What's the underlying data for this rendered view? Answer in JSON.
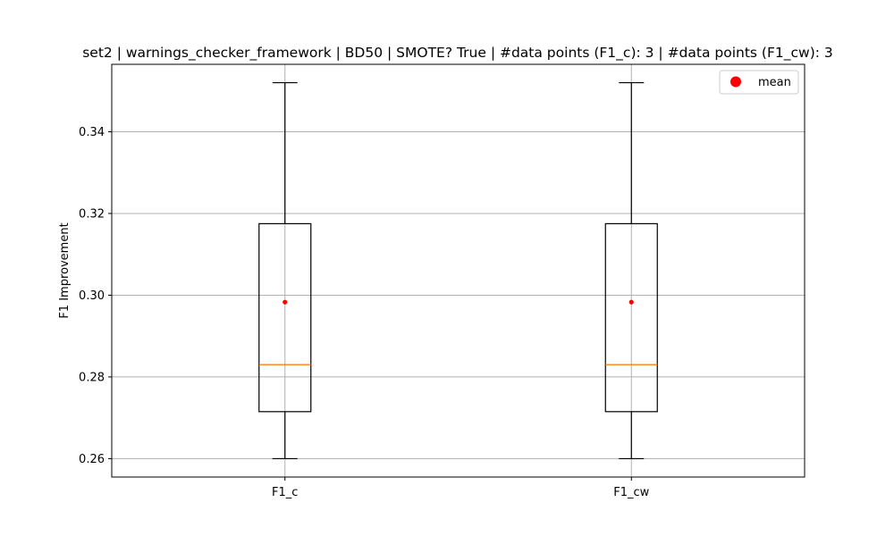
{
  "chart_data": {
    "type": "box",
    "title": "set2 | warnings_checker_framework | BD50 | SMOTE? True | #data points (F1_c): 3 | #data points (F1_cw): 3",
    "xlabel": "",
    "ylabel": "F1 Improvement",
    "ylim": [
      0.2555,
      0.3565
    ],
    "yticks": [
      0.26,
      0.28,
      0.3,
      0.32,
      0.34
    ],
    "ytick_labels": [
      "0.26",
      "0.28",
      "0.30",
      "0.32",
      "0.34"
    ],
    "grid": true,
    "legend": {
      "position": "top-right",
      "entries": [
        "mean"
      ]
    },
    "colors": {
      "median": "#ff7f0e",
      "mean": "#ff0000",
      "box": "#000000",
      "grid": "#b0b0b0"
    },
    "categories": [
      "F1_c",
      "F1_cw"
    ],
    "boxes": [
      {
        "label": "F1_c",
        "whisker_low": 0.26,
        "q1": 0.2715,
        "median": 0.283,
        "q3": 0.3175,
        "whisker_high": 0.352,
        "mean": 0.2983
      },
      {
        "label": "F1_cw",
        "whisker_low": 0.26,
        "q1": 0.2715,
        "median": 0.283,
        "q3": 0.3175,
        "whisker_high": 0.352,
        "mean": 0.2983
      }
    ]
  }
}
